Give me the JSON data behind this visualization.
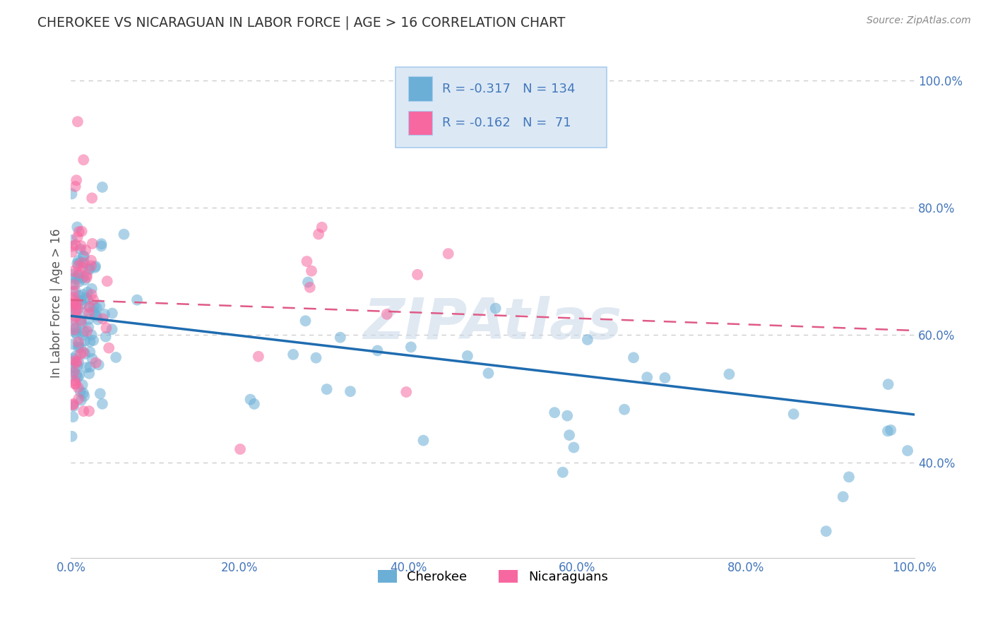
{
  "title": "CHEROKEE VS NICARAGUAN IN LABOR FORCE | AGE > 16 CORRELATION CHART",
  "source": "Source: ZipAtlas.com",
  "ylabel": "In Labor Force | Age > 16",
  "xlim": [
    0.0,
    1.0
  ],
  "ylim": [
    0.25,
    1.05
  ],
  "xticks": [
    0.0,
    0.2,
    0.4,
    0.6,
    0.8,
    1.0
  ],
  "xtick_labels": [
    "0.0%",
    "20.0%",
    "40.0%",
    "60.0%",
    "80.0%",
    "100.0%"
  ],
  "yticks": [
    0.4,
    0.6,
    0.8,
    1.0
  ],
  "ytick_labels": [
    "40.0%",
    "60.0%",
    "80.0%",
    "100.0%"
  ],
  "legend_R1": "-0.317",
  "legend_N1": "134",
  "legend_R2": "-0.162",
  "legend_N2": "71",
  "cherokee_color": "#6baed6",
  "nicaraguan_color": "#f768a1",
  "cherokee_line_color": "#1f6cb0",
  "nicaraguan_line_color": "#e05a87",
  "watermark": "ZIPAtlas",
  "background_color": "#ffffff",
  "grid_color": "#c8c8c8",
  "title_color": "#333333",
  "legend_bg": "#dce9f5",
  "legend_border": "#aaccee",
  "tick_color": "#4477bb",
  "cherokee_line_slope": -0.155,
  "cherokee_line_intercept": 0.63,
  "nicaraguan_line_slope": -0.048,
  "nicaraguan_line_intercept": 0.655
}
